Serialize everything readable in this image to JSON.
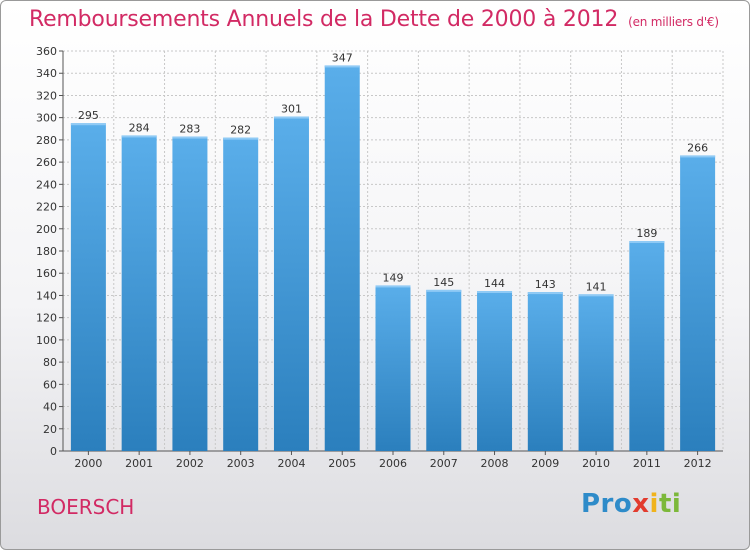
{
  "title": "Remboursements Annuels de la Dette de 2000 à 2012",
  "unit": "(en milliers d'€)",
  "commune": "BOERSCH",
  "logo": {
    "text": "Proxiti",
    "parts": [
      "Pro",
      "x",
      "i",
      "ti"
    ]
  },
  "colors": {
    "bar_top": "#5aaeea",
    "bar_bottom": "#2b7fbd",
    "title": "#d22a64",
    "grid": "#c8c8c8"
  },
  "chart_data": {
    "type": "bar",
    "categories": [
      "2000",
      "2001",
      "2002",
      "2003",
      "2004",
      "2005",
      "2006",
      "2007",
      "2008",
      "2009",
      "2010",
      "2011",
      "2012"
    ],
    "values": [
      295,
      284,
      283,
      282,
      301,
      347,
      149,
      145,
      144,
      143,
      141,
      189,
      266
    ],
    "ylim": [
      0,
      360
    ],
    "yticks": [
      0,
      20,
      40,
      60,
      80,
      100,
      120,
      140,
      160,
      180,
      200,
      220,
      240,
      260,
      280,
      300,
      320,
      340,
      360
    ],
    "grid": true
  }
}
